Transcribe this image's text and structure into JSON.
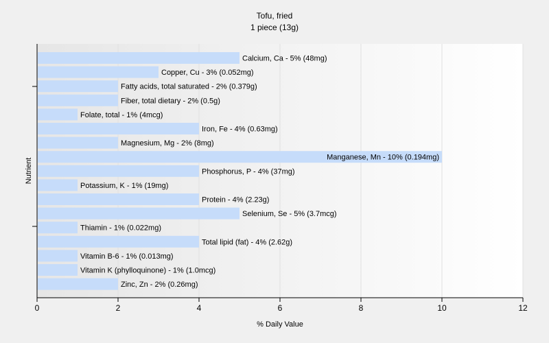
{
  "chart_data": {
    "type": "bar",
    "orientation": "horizontal",
    "title": "Tofu, fried",
    "subtitle": "1 piece (13g)",
    "xlabel": "% Daily Value",
    "ylabel": "Nutrient",
    "xlim": [
      0,
      12
    ],
    "xticks": [
      "0",
      "2",
      "4",
      "6",
      "8",
      "10",
      "12"
    ],
    "grid": true,
    "bar_color": "#c6dcfa",
    "categories": [
      "Calcium, Ca",
      "Copper, Cu",
      "Fatty acids, total saturated",
      "Fiber, total dietary",
      "Folate, total",
      "Iron, Fe",
      "Magnesium, Mg",
      "Manganese, Mn",
      "Phosphorus, P",
      "Potassium, K",
      "Protein",
      "Selenium, Se",
      "Thiamin",
      "Total lipid (fat)",
      "Vitamin B-6",
      "Vitamin K (phylloquinone)",
      "Zinc, Zn"
    ],
    "values": [
      5,
      3,
      2,
      2,
      1,
      4,
      2,
      10,
      4,
      1,
      4,
      5,
      1,
      4,
      1,
      1,
      2
    ],
    "labels": [
      "Calcium, Ca - 5% (48mg)",
      "Copper, Cu - 3% (0.052mg)",
      "Fatty acids, total saturated - 2% (0.379g)",
      "Fiber, total dietary - 2% (0.5g)",
      "Folate, total - 1% (4mcg)",
      "Iron, Fe - 4% (0.63mg)",
      "Magnesium, Mg - 2% (8mg)",
      "Manganese, Mn - 10% (0.194mg)",
      "Phosphorus, P - 4% (37mg)",
      "Potassium, K - 1% (19mg)",
      "Protein - 4% (2.23g)",
      "Selenium, Se - 5% (3.7mcg)",
      "Thiamin - 1% (0.022mg)",
      "Total lipid (fat) - 4% (2.62g)",
      "Vitamin B-6 - 1% (0.013mg)",
      "Vitamin K (phylloquinone) - 1% (1.0mcg)",
      "Zinc, Zn - 2% (0.26mg)"
    ]
  }
}
